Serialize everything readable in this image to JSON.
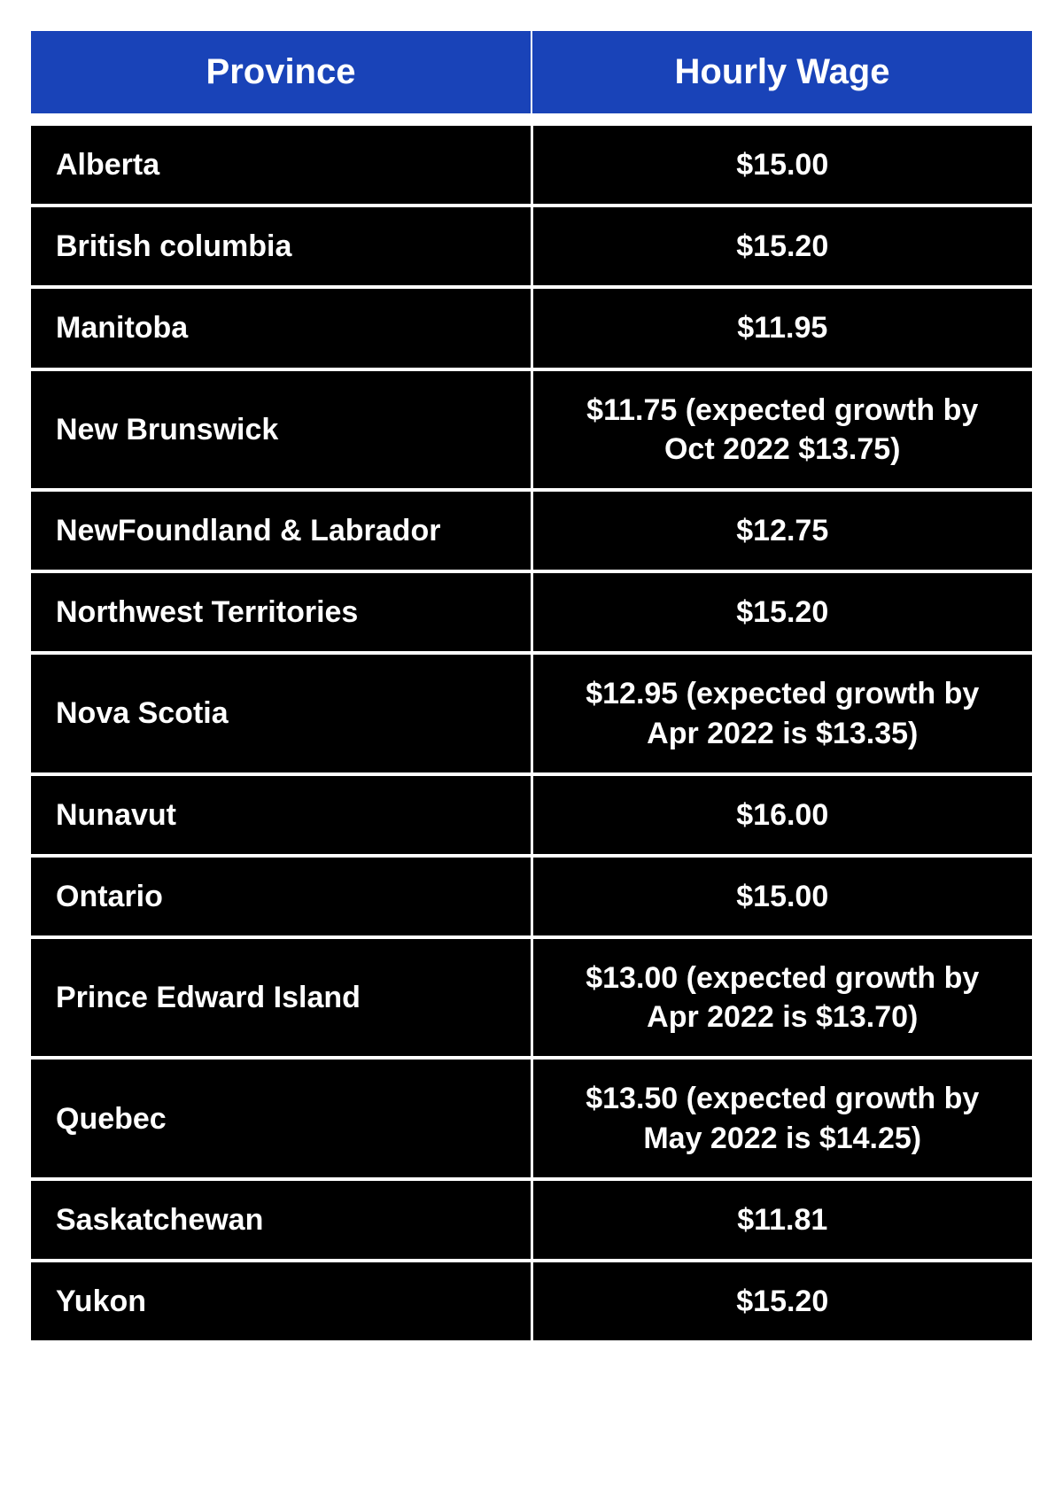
{
  "table": {
    "type": "table",
    "header_bg_color": "#1943b8",
    "body_bg_color": "#000000",
    "text_color": "#ffffff",
    "border_color": "#ffffff",
    "header_fontsize": 40,
    "body_fontsize": 34,
    "columns": [
      {
        "label": "Province",
        "align": "left"
      },
      {
        "label": "Hourly Wage",
        "align": "center"
      }
    ],
    "rows": [
      {
        "province": "Alberta",
        "wage": "$15.00"
      },
      {
        "province": "British columbia",
        "wage": "$15.20"
      },
      {
        "province": "Manitoba",
        "wage": "$11.95"
      },
      {
        "province": "New Brunswick",
        "wage": "$11.75 (expected growth by Oct 2022 $13.75)"
      },
      {
        "province": "NewFoundland & Labrador",
        "wage": "$12.75"
      },
      {
        "province": "Northwest Territories",
        "wage": "$15.20"
      },
      {
        "province": "Nova Scotia",
        "wage": "$12.95 (expected growth by Apr 2022 is $13.35)"
      },
      {
        "province": "Nunavut",
        "wage": "$16.00"
      },
      {
        "province": "Ontario",
        "wage": "$15.00"
      },
      {
        "province": "Prince Edward Island",
        "wage": "$13.00 (expected growth by Apr 2022 is $13.70)"
      },
      {
        "province": "Quebec",
        "wage": "$13.50 (expected growth by May 2022 is $14.25)"
      },
      {
        "province": "Saskatchewan",
        "wage": "$11.81"
      },
      {
        "province": "Yukon",
        "wage": "$15.20"
      }
    ]
  }
}
